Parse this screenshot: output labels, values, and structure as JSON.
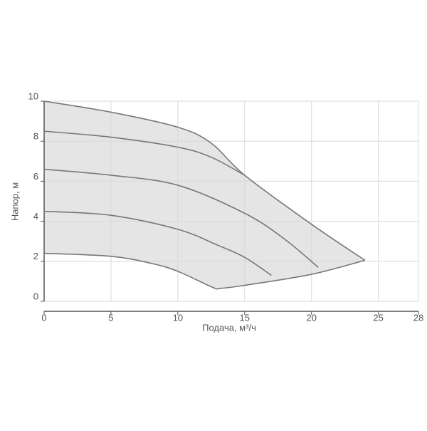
{
  "chart_data": {
    "type": "line",
    "xlabel": "Подача, м³/ч",
    "ylabel": "Напор, м",
    "xlim": [
      0,
      28
    ],
    "ylim": [
      0,
      10
    ],
    "xticks": [
      0,
      5,
      10,
      15,
      20,
      25,
      28
    ],
    "yticks": [
      0,
      2,
      4,
      6,
      8,
      10
    ],
    "grid": true,
    "fill_color": "#e5e5e5",
    "series": [
      {
        "color": "#777777",
        "x": [
          0,
          5,
          10,
          12.5,
          15,
          20,
          24
        ],
        "values": [
          10,
          9.45,
          8.7,
          7.9,
          6.3,
          3.85,
          2.05
        ]
      },
      {
        "color": "#777777",
        "x": [
          0,
          5,
          10,
          12.5,
          15
        ],
        "values": [
          8.5,
          8.2,
          7.7,
          7.2,
          6.3
        ]
      },
      {
        "color": "#777777",
        "x": [
          0,
          5,
          10,
          15,
          18,
          20.5
        ],
        "values": [
          6.6,
          6.3,
          5.8,
          4.4,
          3.1,
          1.7
        ]
      },
      {
        "color": "#777777",
        "x": [
          0,
          5,
          10,
          13,
          15,
          17
        ],
        "values": [
          4.5,
          4.3,
          3.6,
          2.8,
          2.2,
          1.3
        ]
      },
      {
        "color": "#777777",
        "x": [
          0,
          5,
          8,
          10,
          12.6,
          13.2,
          15,
          20,
          24
        ],
        "values": [
          2.4,
          2.25,
          1.9,
          1.5,
          0.7,
          0.65,
          0.8,
          1.35,
          2.05
        ]
      }
    ]
  }
}
